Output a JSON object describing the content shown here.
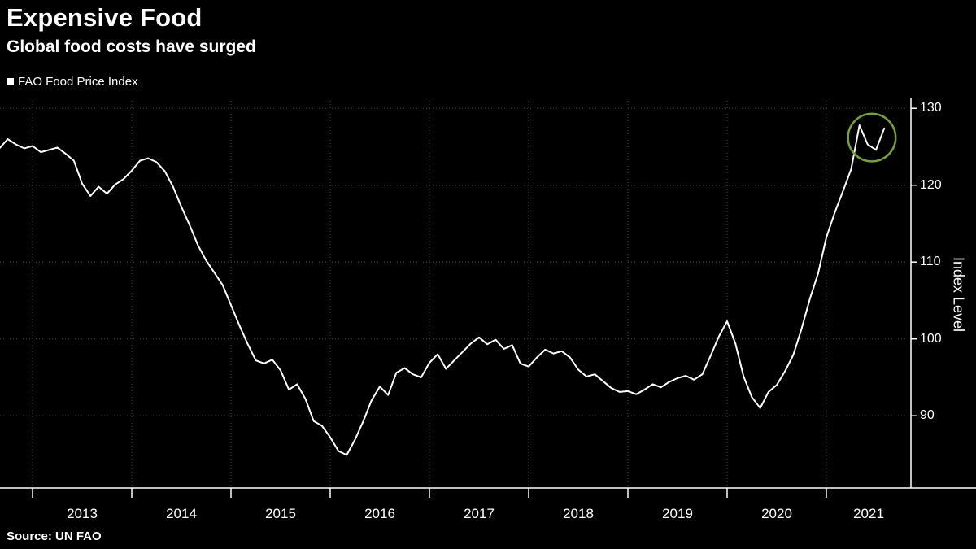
{
  "header": {
    "title": "Expensive Food",
    "subtitle": "Global food costs have surged"
  },
  "legend": {
    "label": "FAO Food Price Index",
    "marker_color": "#ffffff"
  },
  "source": {
    "text": "Source: UN FAO"
  },
  "colors": {
    "background": "#000000",
    "line": "#ffffff",
    "grid": "#454545",
    "axis": "#ffffff",
    "annotation_circle": "#73a530"
  },
  "chart_data": {
    "type": "line",
    "title": "Expensive Food",
    "subtitle": "Global food costs have surged",
    "ylabel": "Index Level",
    "xlabel": "",
    "legend_position": "top-left",
    "grid": "dotted",
    "y_ticks": [
      90,
      100,
      110,
      120,
      130
    ],
    "ylim": [
      80.6,
      131.4
    ],
    "x_tick_labels": [
      "2013",
      "2014",
      "2015",
      "2016",
      "2017",
      "2018",
      "2019",
      "2020",
      "2021"
    ],
    "x_start": {
      "year": 2012,
      "month": 9
    },
    "x_end": {
      "year": 2021,
      "month": 8
    },
    "frequency": "monthly",
    "series": [
      {
        "name": "FAO Food Price Index",
        "color": "#ffffff",
        "values": [
          124.8,
          126.0,
          125.3,
          124.8,
          125.1,
          124.3,
          124.6,
          124.9,
          124.1,
          123.2,
          120.2,
          118.6,
          119.8,
          118.9,
          120.1,
          120.8,
          121.9,
          123.2,
          123.5,
          123.0,
          121.8,
          119.8,
          117.2,
          114.8,
          112.2,
          110.2,
          108.6,
          107.0,
          104.4,
          101.8,
          99.4,
          97.2,
          96.8,
          97.3,
          95.9,
          93.4,
          94.1,
          92.2,
          89.3,
          88.7,
          87.2,
          85.4,
          84.9,
          86.9,
          89.3,
          92.0,
          93.8,
          92.7,
          95.6,
          96.2,
          95.4,
          95.0,
          96.9,
          98.0,
          96.1,
          97.2,
          98.3,
          99.4,
          100.2,
          99.3,
          99.9,
          98.7,
          99.2,
          96.8,
          96.4,
          97.6,
          98.6,
          98.1,
          98.4,
          97.6,
          96.0,
          95.1,
          95.4,
          94.5,
          93.6,
          93.1,
          93.2,
          92.8,
          93.4,
          94.1,
          93.7,
          94.4,
          94.9,
          95.2,
          94.7,
          95.4,
          97.8,
          100.3,
          102.3,
          99.4,
          95.1,
          92.4,
          91.0,
          93.1,
          94.0,
          95.8,
          97.9,
          101.3,
          105.2,
          108.5,
          113.2,
          116.4,
          119.2,
          122.1,
          127.8,
          125.3,
          124.6,
          127.4
        ]
      }
    ],
    "annotation": {
      "type": "circle",
      "highlights": "final 2021 peak (May-Aug 2021)",
      "color": "#73a530"
    }
  }
}
